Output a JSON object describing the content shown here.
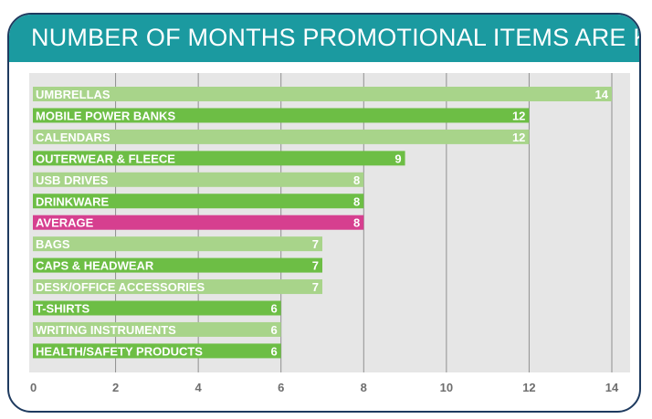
{
  "title": "NUMBER OF MONTHS PROMOTIONAL ITEMS ARE KEPT",
  "colors": {
    "header_bg": "#1b9aa0",
    "border": "#1e3a5f",
    "plot_bg": "#e6e6e6",
    "bar_light": "#a8d48a",
    "bar_dark": "#6dbe45",
    "bar_average": "#d63f8f",
    "gridline": "#8f8f8f"
  },
  "chart_data": {
    "type": "bar",
    "orientation": "horizontal",
    "title": "NUMBER OF MONTHS PROMOTIONAL ITEMS ARE KEPT",
    "xlabel": "",
    "ylabel": "",
    "xlim": [
      0,
      14
    ],
    "xticks": [
      0,
      2,
      4,
      6,
      8,
      10,
      12,
      14
    ],
    "grid": true,
    "categories": [
      "UMBRELLAS",
      "MOBILE POWER BANKS",
      "CALENDARS",
      "OUTERWEAR & FLEECE",
      "USB DRIVES",
      "DRINKWARE",
      "AVERAGE",
      "BAGS",
      "CAPS & HEADWEAR",
      "DESK/OFFICE ACCESSORIES",
      "T-SHIRTS",
      "WRITING INSTRUMENTS",
      "HEALTH/SAFETY PRODUCTS"
    ],
    "values": [
      14,
      12,
      12,
      9,
      8,
      8,
      8,
      7,
      7,
      7,
      6,
      6,
      6
    ],
    "bar_styles": [
      "light",
      "dark",
      "light",
      "dark",
      "light",
      "dark",
      "average",
      "light",
      "dark",
      "light",
      "dark",
      "light",
      "dark"
    ]
  }
}
